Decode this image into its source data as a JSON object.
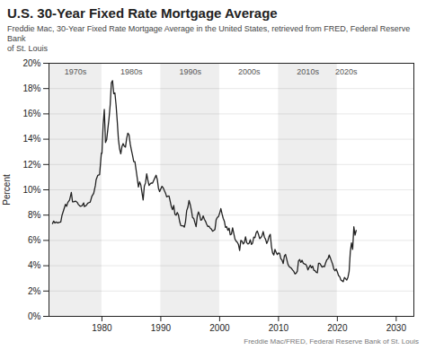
{
  "chart_data": {
    "type": "line",
    "title": "U.S. 30-Year Fixed Rate Mortgage Average",
    "subtitle": "Freddie Mac, 30-Year Fixed Rate Mortgage Average in the United States, retrieved from FRED, Federal Reserve Bank\nof St. Louis",
    "footer": "Freddie Mac/FRED, Federal Reserve Bank of St. Louis",
    "ylabel": "Percent",
    "xlim": [
      1971,
      2033
    ],
    "xticks": [
      1980,
      1990,
      2000,
      2010,
      2020,
      2030
    ],
    "ylim": [
      0,
      20
    ],
    "yticks": [
      {
        "value": 0,
        "label": "0%"
      },
      {
        "value": 2,
        "label": "2%"
      },
      {
        "value": 4,
        "label": "4%"
      },
      {
        "value": 6,
        "label": "6%"
      },
      {
        "value": 8,
        "label": "8%"
      },
      {
        "value": 10,
        "label": "10%"
      },
      {
        "value": 12,
        "label": "12%"
      },
      {
        "value": 14,
        "label": "14%"
      },
      {
        "value": 16,
        "label": "16%"
      },
      {
        "value": 18,
        "label": "18%"
      },
      {
        "value": 20,
        "label": "20%"
      }
    ],
    "grid": true,
    "bands": [
      {
        "start": 1971,
        "end": 1980,
        "label": "1970s",
        "color": "#eeeeee"
      },
      {
        "start": 1980,
        "end": 1990,
        "label": "1980s",
        "color": "#ffffff"
      },
      {
        "start": 1990,
        "end": 2000,
        "label": "1990s",
        "color": "#eeeeee"
      },
      {
        "start": 2000,
        "end": 2010,
        "label": "2000s",
        "color": "#ffffff"
      },
      {
        "start": 2010,
        "end": 2020,
        "label": "2010s",
        "color": "#eeeeee"
      },
      {
        "start": 2020,
        "end": 2023,
        "label": "2020s",
        "color": "#ffffff"
      }
    ],
    "x": [
      1971.6,
      1971.8,
      1972.0,
      1972.2,
      1972.5,
      1972.8,
      1973.0,
      1973.2,
      1973.5,
      1973.8,
      1974.0,
      1974.2,
      1974.5,
      1974.8,
      1975.0,
      1975.2,
      1975.5,
      1975.8,
      1976.0,
      1976.3,
      1976.6,
      1976.9,
      1977.0,
      1977.3,
      1977.6,
      1977.9,
      1978.0,
      1978.3,
      1978.6,
      1978.9,
      1979.0,
      1979.3,
      1979.6,
      1979.9,
      1980.0,
      1980.2,
      1980.4,
      1980.6,
      1980.8,
      1981.0,
      1981.2,
      1981.4,
      1981.6,
      1981.8,
      1982.0,
      1982.2,
      1982.4,
      1982.6,
      1982.8,
      1983.0,
      1983.2,
      1983.4,
      1983.6,
      1983.8,
      1984.0,
      1984.2,
      1984.4,
      1984.6,
      1984.8,
      1985.0,
      1985.2,
      1985.4,
      1985.6,
      1985.8,
      1986.0,
      1986.2,
      1986.4,
      1986.6,
      1986.8,
      1987.0,
      1987.2,
      1987.4,
      1987.6,
      1987.8,
      1988.0,
      1988.2,
      1988.4,
      1988.6,
      1988.8,
      1989.0,
      1989.2,
      1989.4,
      1989.6,
      1989.8,
      1990.0,
      1990.2,
      1990.4,
      1990.6,
      1990.8,
      1991.0,
      1991.2,
      1991.4,
      1991.6,
      1991.8,
      1992.0,
      1992.2,
      1992.4,
      1992.6,
      1992.8,
      1993.0,
      1993.2,
      1993.4,
      1993.6,
      1993.8,
      1994.0,
      1994.2,
      1994.4,
      1994.6,
      1994.8,
      1995.0,
      1995.2,
      1995.4,
      1995.6,
      1995.8,
      1996.0,
      1996.2,
      1996.4,
      1996.6,
      1996.8,
      1997.0,
      1997.2,
      1997.4,
      1997.6,
      1997.8,
      1998.0,
      1998.2,
      1998.4,
      1998.6,
      1998.8,
      1999.0,
      1999.2,
      1999.4,
      1999.6,
      1999.8,
      2000.0,
      2000.2,
      2000.4,
      2000.6,
      2000.8,
      2001.0,
      2001.2,
      2001.4,
      2001.6,
      2001.8,
      2002.0,
      2002.2,
      2002.4,
      2002.6,
      2002.8,
      2003.0,
      2003.2,
      2003.4,
      2003.6,
      2003.8,
      2004.0,
      2004.2,
      2004.4,
      2004.6,
      2004.8,
      2005.0,
      2005.2,
      2005.4,
      2005.6,
      2005.8,
      2006.0,
      2006.2,
      2006.4,
      2006.6,
      2006.8,
      2007.0,
      2007.2,
      2007.4,
      2007.6,
      2007.8,
      2008.0,
      2008.2,
      2008.4,
      2008.6,
      2008.8,
      2009.0,
      2009.2,
      2009.4,
      2009.6,
      2009.8,
      2010.0,
      2010.2,
      2010.4,
      2010.6,
      2010.8,
      2011.0,
      2011.2,
      2011.4,
      2011.6,
      2011.8,
      2012.0,
      2012.2,
      2012.4,
      2012.6,
      2012.8,
      2013.0,
      2013.2,
      2013.4,
      2013.6,
      2013.8,
      2014.0,
      2014.2,
      2014.4,
      2014.6,
      2014.8,
      2015.0,
      2015.2,
      2015.4,
      2015.6,
      2015.8,
      2016.0,
      2016.2,
      2016.4,
      2016.6,
      2016.8,
      2017.0,
      2017.2,
      2017.4,
      2017.6,
      2017.8,
      2018.0,
      2018.2,
      2018.4,
      2018.6,
      2018.8,
      2019.0,
      2019.2,
      2019.4,
      2019.6,
      2019.8,
      2020.0,
      2020.2,
      2020.4,
      2020.6,
      2020.8,
      2021.0,
      2021.2,
      2021.4,
      2021.6,
      2021.8,
      2022.0,
      2022.2,
      2022.4,
      2022.6,
      2022.8,
      2023.0,
      2023.2
    ],
    "values": [
      7.33,
      7.53,
      7.38,
      7.45,
      7.38,
      7.44,
      7.46,
      7.96,
      8.4,
      8.85,
      8.7,
      9.0,
      9.19,
      9.79,
      9.05,
      9.05,
      9.11,
      9.01,
      8.84,
      8.7,
      8.73,
      8.96,
      8.68,
      8.75,
      8.94,
      9.01,
      9.02,
      9.5,
      9.73,
      10.38,
      10.78,
      11.15,
      11.2,
      12.9,
      12.88,
      15.14,
      16.35,
      13.74,
      13.95,
      14.8,
      15.63,
      16.7,
      18.45,
      18.63,
      17.6,
      17.66,
      16.7,
      15.43,
      13.98,
      13.24,
      12.85,
      13.42,
      13.65,
      13.44,
      13.38,
      14.07,
      14.47,
      14.35,
      13.64,
      13.15,
      12.72,
      12.23,
      12.22,
      11.58,
      10.91,
      10.22,
      10.63,
      10.39,
      9.8,
      9.2,
      10.28,
      10.54,
      11.26,
      10.78,
      10.34,
      10.47,
      10.54,
      10.53,
      10.75,
      10.95,
      11.15,
      10.82,
      10.13,
      9.86,
      10.07,
      10.28,
      10.16,
      9.94,
      9.74,
      9.44,
      9.5,
      9.51,
      9.09,
      8.65,
      8.43,
      8.76,
      8.07,
      7.99,
      8.21,
      8.02,
      7.5,
      7.17,
      7.16,
      7.16,
      7.05,
      7.48,
      8.36,
      8.61,
      9.15,
      8.83,
      8.38,
      7.8,
      7.74,
      7.4,
      7.09,
      7.93,
      8.25,
      8.01,
      7.6,
      7.65,
      7.94,
      7.68,
      7.51,
      7.27,
      7.1,
      7.12,
      6.97,
      6.9,
      6.73,
      6.79,
      6.87,
      7.62,
      7.82,
      7.88,
      8.15,
      8.52,
      8.11,
      7.75,
      7.51,
      7.03,
      7.08,
      6.8,
      6.97,
      6.45,
      6.49,
      7.0,
      6.55,
      6.11,
      5.94,
      5.85,
      5.67,
      5.21,
      6.0,
      5.94,
      5.72,
      5.84,
      6.29,
      5.83,
      5.72,
      5.77,
      6.05,
      5.68,
      5.79,
      6.26,
      6.22,
      6.6,
      6.74,
      6.48,
      6.14,
      6.22,
      6.37,
      6.7,
      6.26,
      6.09,
      5.76,
      5.98,
      6.32,
      6.48,
      5.53,
      5.01,
      4.85,
      5.29,
      5.06,
      4.88,
      5.01,
      4.97,
      4.55,
      4.45,
      4.17,
      4.77,
      4.89,
      4.51,
      4.12,
      3.94,
      3.87,
      3.79,
      3.66,
      3.55,
      3.35,
      3.41,
      3.57,
      4.39,
      4.49,
      4.26,
      4.43,
      4.2,
      4.14,
      4.12,
      3.97,
      3.67,
      3.86,
      4.04,
      3.84,
      3.97,
      3.65,
      3.61,
      3.48,
      3.44,
      4.2,
      4.2,
      4.05,
      3.89,
      3.96,
      3.92,
      4.22,
      4.47,
      4.54,
      4.85,
      4.63,
      4.37,
      4.12,
      3.73,
      3.6,
      3.74,
      3.51,
      3.23,
      3.13,
      2.87,
      2.81,
      2.74,
      3.08,
      2.97,
      2.87,
      3.09,
      3.55,
      5.1,
      5.81,
      5.3,
      7.08,
      6.42,
      6.79
    ]
  }
}
